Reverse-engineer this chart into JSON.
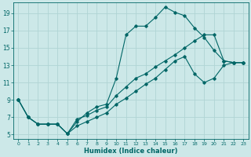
{
  "xlabel": "Humidex (Indice chaleur)",
  "bg_color": "#cce8e8",
  "grid_color": "#b0d4d4",
  "line_color": "#006666",
  "xlim": [
    -0.5,
    23.5
  ],
  "ylim": [
    4.5,
    20.2
  ],
  "xticks": [
    0,
    1,
    2,
    3,
    4,
    5,
    6,
    7,
    8,
    9,
    10,
    11,
    12,
    13,
    14,
    15,
    16,
    17,
    18,
    19,
    20,
    21,
    22,
    23
  ],
  "yticks": [
    5,
    7,
    9,
    11,
    13,
    15,
    17,
    19
  ],
  "line1_x": [
    0,
    1,
    2,
    3,
    4,
    5,
    6,
    7,
    8,
    9,
    10,
    11,
    12,
    13,
    14,
    15,
    16,
    17,
    18,
    19,
    20,
    21,
    22,
    23
  ],
  "line1_y": [
    9,
    7,
    6.2,
    6.2,
    6.2,
    5.1,
    6.5,
    7.5,
    8.2,
    8.5,
    11.5,
    16.5,
    17.5,
    17.5,
    18.5,
    19.7,
    19.1,
    18.7,
    17.3,
    16.2,
    14.7,
    13.5,
    13.3,
    13.3
  ],
  "line2_x": [
    0,
    1,
    2,
    3,
    4,
    5,
    6,
    7,
    8,
    9,
    10,
    11,
    12,
    13,
    14,
    15,
    16,
    17,
    18,
    19,
    20,
    21,
    22,
    23
  ],
  "line2_y": [
    9,
    7,
    6.2,
    6.2,
    6.2,
    5.1,
    6.8,
    7.2,
    7.8,
    8.2,
    9.5,
    10.5,
    11.5,
    12.0,
    12.8,
    13.5,
    14.2,
    15.0,
    15.8,
    16.5,
    16.5,
    13.5,
    13.3,
    13.3
  ],
  "line3_x": [
    0,
    1,
    2,
    3,
    4,
    5,
    6,
    7,
    8,
    9,
    10,
    11,
    12,
    13,
    14,
    15,
    16,
    17,
    18,
    19,
    20,
    21,
    22,
    23
  ],
  "line3_y": [
    9,
    7,
    6.2,
    6.2,
    6.2,
    5.1,
    6.0,
    6.5,
    7.0,
    7.5,
    8.5,
    9.2,
    10.0,
    10.8,
    11.5,
    12.5,
    13.5,
    14.0,
    12.0,
    11.0,
    11.5,
    13.0,
    13.3,
    13.3
  ]
}
